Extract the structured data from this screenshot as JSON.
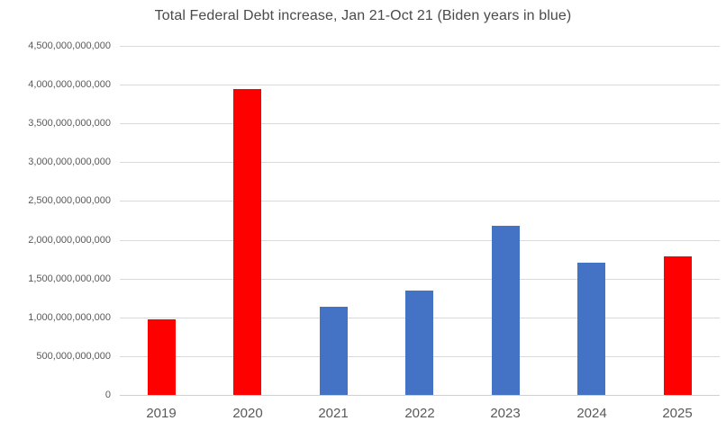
{
  "chart_data": {
    "type": "bar",
    "title": "Total Federal Debt increase, Jan 21-Oct 21 (Biden years in blue)",
    "categories": [
      "2019",
      "2020",
      "2021",
      "2022",
      "2023",
      "2024",
      "2025"
    ],
    "values": [
      970000000000,
      3940000000000,
      1140000000000,
      1350000000000,
      2180000000000,
      1700000000000,
      1790000000000
    ],
    "bar_colors": [
      "#ff0000",
      "#ff0000",
      "#4472c4",
      "#4472c4",
      "#4472c4",
      "#4472c4",
      "#ff0000"
    ],
    "xlabel": "",
    "ylabel": "",
    "ylim": [
      0,
      4500000000000
    ],
    "ytick_interval": 500000000000,
    "ytick_labels": [
      "0",
      "500,000,000,000",
      "1,000,000,000,000",
      "1,500,000,000,000",
      "2,000,000,000,000",
      "2,500,000,000,000",
      "3,000,000,000,000",
      "3,500,000,000,000",
      "4,000,000,000,000",
      "4,500,000,000,000"
    ],
    "grid": true,
    "legend": false,
    "legend_note": "Biden years in blue, other years in red"
  },
  "colors": {
    "red_bar": "#ff0000",
    "blue_bar": "#4472c4",
    "gridline": "#d9d9d9",
    "axis_label": "#595959",
    "title_text": "#4a4a4a",
    "background": "#ffffff"
  }
}
